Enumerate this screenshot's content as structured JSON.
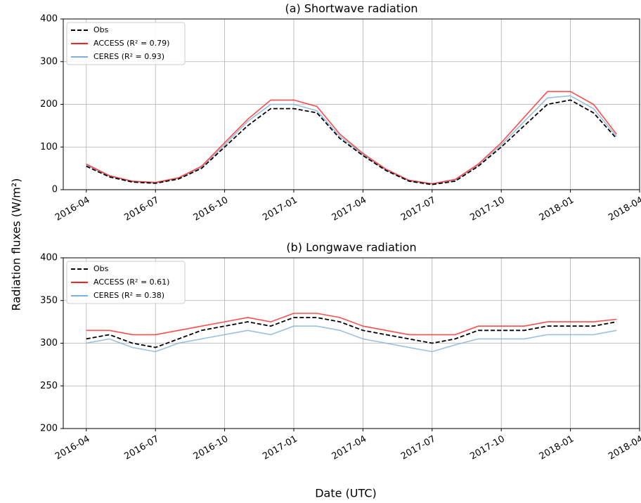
{
  "chart_data": [
    {
      "type": "line",
      "title": "(a) Shortwave radiation",
      "x": [
        "2016-04",
        "2016-05",
        "2016-06",
        "2016-07",
        "2016-08",
        "2016-09",
        "2016-10",
        "2016-11",
        "2016-12",
        "2017-01",
        "2017-02",
        "2017-03",
        "2017-04",
        "2017-05",
        "2017-06",
        "2017-07",
        "2017-08",
        "2017-09",
        "2017-10",
        "2017-11",
        "2017-12",
        "2018-01",
        "2018-02",
        "2018-03"
      ],
      "series": [
        {
          "name": "Obs",
          "color": "#000000",
          "dash": true,
          "values": [
            55,
            30,
            18,
            15,
            25,
            50,
            100,
            150,
            190,
            190,
            180,
            120,
            80,
            45,
            20,
            12,
            20,
            55,
            100,
            150,
            200,
            210,
            180,
            120
          ]
        },
        {
          "name": "ACCESS (R² = 0.79)",
          "color": "#ff2020",
          "dash": false,
          "values": [
            60,
            33,
            20,
            17,
            28,
            55,
            110,
            165,
            210,
            210,
            195,
            130,
            85,
            48,
            22,
            14,
            24,
            60,
            110,
            170,
            230,
            230,
            200,
            130
          ]
        },
        {
          "name": "CERES (R² = 0.93)",
          "color": "#7eb0d8",
          "dash": false,
          "values": [
            58,
            32,
            19,
            16,
            27,
            52,
            105,
            160,
            200,
            200,
            185,
            125,
            82,
            46,
            21,
            13,
            22,
            57,
            105,
            160,
            215,
            220,
            190,
            125
          ]
        }
      ],
      "xlim": [
        "2016-03",
        "2018-04"
      ],
      "xticks": [
        "2016-04",
        "2016-07",
        "2016-10",
        "2017-01",
        "2017-04",
        "2017-07",
        "2017-10",
        "2018-01",
        "2018-04"
      ],
      "ylim": [
        0,
        400
      ],
      "yticks": [
        0,
        100,
        200,
        300,
        400
      ],
      "grid": true,
      "legend": "upper left"
    },
    {
      "type": "line",
      "title": "(b) Longwave radiation",
      "x": [
        "2016-04",
        "2016-05",
        "2016-06",
        "2016-07",
        "2016-08",
        "2016-09",
        "2016-10",
        "2016-11",
        "2016-12",
        "2017-01",
        "2017-02",
        "2017-03",
        "2017-04",
        "2017-05",
        "2017-06",
        "2017-07",
        "2017-08",
        "2017-09",
        "2017-10",
        "2017-11",
        "2017-12",
        "2018-01",
        "2018-02",
        "2018-03"
      ],
      "series": [
        {
          "name": "Obs",
          "color": "#000000",
          "dash": true,
          "values": [
            305,
            310,
            300,
            295,
            305,
            315,
            320,
            325,
            320,
            330,
            330,
            325,
            315,
            310,
            305,
            300,
            305,
            315,
            315,
            315,
            320,
            320,
            320,
            325
          ]
        },
        {
          "name": "ACCESS (R² = 0.61)",
          "color": "#ff2020",
          "dash": false,
          "values": [
            315,
            315,
            310,
            310,
            315,
            320,
            325,
            330,
            325,
            335,
            335,
            330,
            320,
            315,
            310,
            310,
            310,
            320,
            320,
            320,
            325,
            325,
            325,
            328
          ]
        },
        {
          "name": "CERES (R² = 0.38)",
          "color": "#7eb0d8",
          "dash": false,
          "values": [
            300,
            305,
            295,
            290,
            300,
            305,
            310,
            315,
            310,
            320,
            320,
            315,
            305,
            300,
            295,
            290,
            298,
            305,
            305,
            305,
            310,
            310,
            310,
            315
          ]
        }
      ],
      "xlim": [
        "2016-03",
        "2018-04"
      ],
      "xticks": [
        "2016-04",
        "2016-07",
        "2016-10",
        "2017-01",
        "2017-04",
        "2017-07",
        "2017-10",
        "2018-01",
        "2018-04"
      ],
      "ylim": [
        200,
        400
      ],
      "yticks": [
        200,
        250,
        300,
        350,
        400
      ],
      "grid": true,
      "legend": "upper left"
    }
  ],
  "ylabel": "Radiation fluxes (W/m²)",
  "xlabel": "Date (UTC)"
}
